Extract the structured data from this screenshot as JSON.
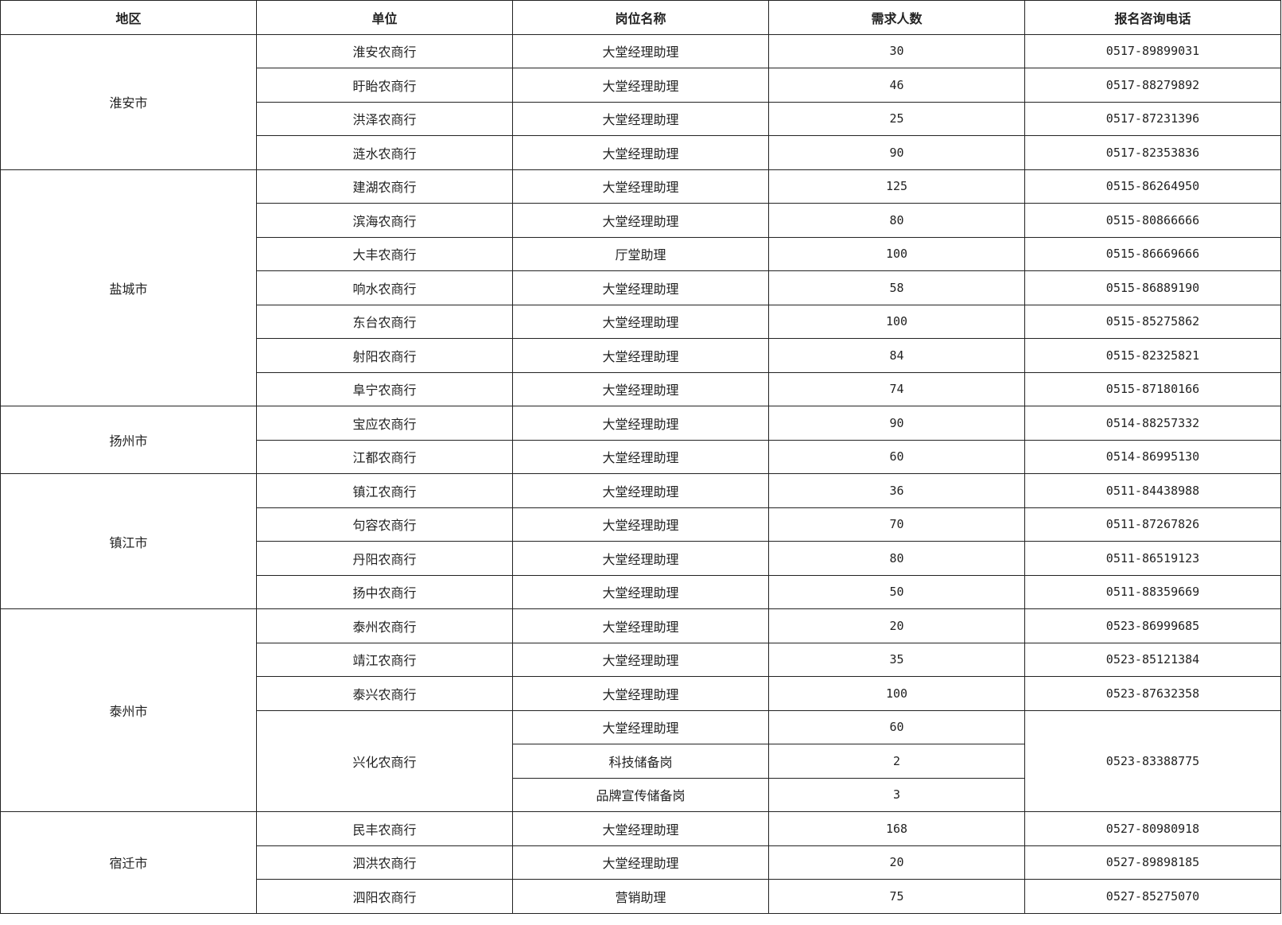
{
  "headers": [
    "地区",
    "单位",
    "岗位名称",
    "需求人数",
    "报名咨询电话"
  ],
  "regions": [
    {
      "name": "淮安市",
      "units": [
        {
          "name": "淮安农商行",
          "phone": "0517-89899031",
          "positions": [
            {
              "title": "大堂经理助理",
              "count": "30"
            }
          ]
        },
        {
          "name": "盱眙农商行",
          "phone": "0517-88279892",
          "positions": [
            {
              "title": "大堂经理助理",
              "count": "46"
            }
          ]
        },
        {
          "name": "洪泽农商行",
          "phone": "0517-87231396",
          "positions": [
            {
              "title": "大堂经理助理",
              "count": "25"
            }
          ]
        },
        {
          "name": "涟水农商行",
          "phone": "0517-82353836",
          "positions": [
            {
              "title": "大堂经理助理",
              "count": "90"
            }
          ]
        }
      ]
    },
    {
      "name": "盐城市",
      "units": [
        {
          "name": "建湖农商行",
          "phone": "0515-86264950",
          "positions": [
            {
              "title": "大堂经理助理",
              "count": "125"
            }
          ]
        },
        {
          "name": "滨海农商行",
          "phone": "0515-80866666",
          "positions": [
            {
              "title": "大堂经理助理",
              "count": "80"
            }
          ]
        },
        {
          "name": "大丰农商行",
          "phone": "0515-86669666",
          "positions": [
            {
              "title": "厅堂助理",
              "count": "100"
            }
          ]
        },
        {
          "name": "响水农商行",
          "phone": "0515-86889190",
          "positions": [
            {
              "title": "大堂经理助理",
              "count": "58"
            }
          ]
        },
        {
          "name": "东台农商行",
          "phone": "0515-85275862",
          "positions": [
            {
              "title": "大堂经理助理",
              "count": "100"
            }
          ]
        },
        {
          "name": "射阳农商行",
          "phone": "0515-82325821",
          "positions": [
            {
              "title": "大堂经理助理",
              "count": "84"
            }
          ]
        },
        {
          "name": "阜宁农商行",
          "phone": "0515-87180166",
          "positions": [
            {
              "title": "大堂经理助理",
              "count": "74"
            }
          ]
        }
      ]
    },
    {
      "name": "扬州市",
      "units": [
        {
          "name": "宝应农商行",
          "phone": "0514-88257332",
          "positions": [
            {
              "title": "大堂经理助理",
              "count": "90"
            }
          ]
        },
        {
          "name": "江都农商行",
          "phone": "0514-86995130",
          "positions": [
            {
              "title": "大堂经理助理",
              "count": "60"
            }
          ]
        }
      ]
    },
    {
      "name": "镇江市",
      "units": [
        {
          "name": "镇江农商行",
          "phone": "0511-84438988",
          "positions": [
            {
              "title": "大堂经理助理",
              "count": "36"
            }
          ]
        },
        {
          "name": "句容农商行",
          "phone": "0511-87267826",
          "positions": [
            {
              "title": "大堂经理助理",
              "count": "70"
            }
          ]
        },
        {
          "name": "丹阳农商行",
          "phone": "0511-86519123",
          "positions": [
            {
              "title": "大堂经理助理",
              "count": "80"
            }
          ]
        },
        {
          "name": "扬中农商行",
          "phone": "0511-88359669",
          "positions": [
            {
              "title": "大堂经理助理",
              "count": "50"
            }
          ]
        }
      ]
    },
    {
      "name": "泰州市",
      "units": [
        {
          "name": "泰州农商行",
          "phone": "0523-86999685",
          "positions": [
            {
              "title": "大堂经理助理",
              "count": "20"
            }
          ]
        },
        {
          "name": "靖江农商行",
          "phone": "0523-85121384",
          "positions": [
            {
              "title": "大堂经理助理",
              "count": "35"
            }
          ]
        },
        {
          "name": "泰兴农商行",
          "phone": "0523-87632358",
          "positions": [
            {
              "title": "大堂经理助理",
              "count": "100"
            }
          ]
        },
        {
          "name": "兴化农商行",
          "phone": "0523-83388775",
          "positions": [
            {
              "title": "大堂经理助理",
              "count": "60"
            },
            {
              "title": "科技储备岗",
              "count": "2"
            },
            {
              "title": "品牌宣传储备岗",
              "count": "3"
            }
          ]
        }
      ]
    },
    {
      "name": "宿迁市",
      "units": [
        {
          "name": "民丰农商行",
          "phone": "0527-80980918",
          "positions": [
            {
              "title": "大堂经理助理",
              "count": "168"
            }
          ]
        },
        {
          "name": "泗洪农商行",
          "phone": "0527-89898185",
          "positions": [
            {
              "title": "大堂经理助理",
              "count": "20"
            }
          ]
        },
        {
          "name": "泗阳农商行",
          "phone": "0527-85275070",
          "positions": [
            {
              "title": "营销助理",
              "count": "75"
            }
          ]
        }
      ]
    }
  ]
}
